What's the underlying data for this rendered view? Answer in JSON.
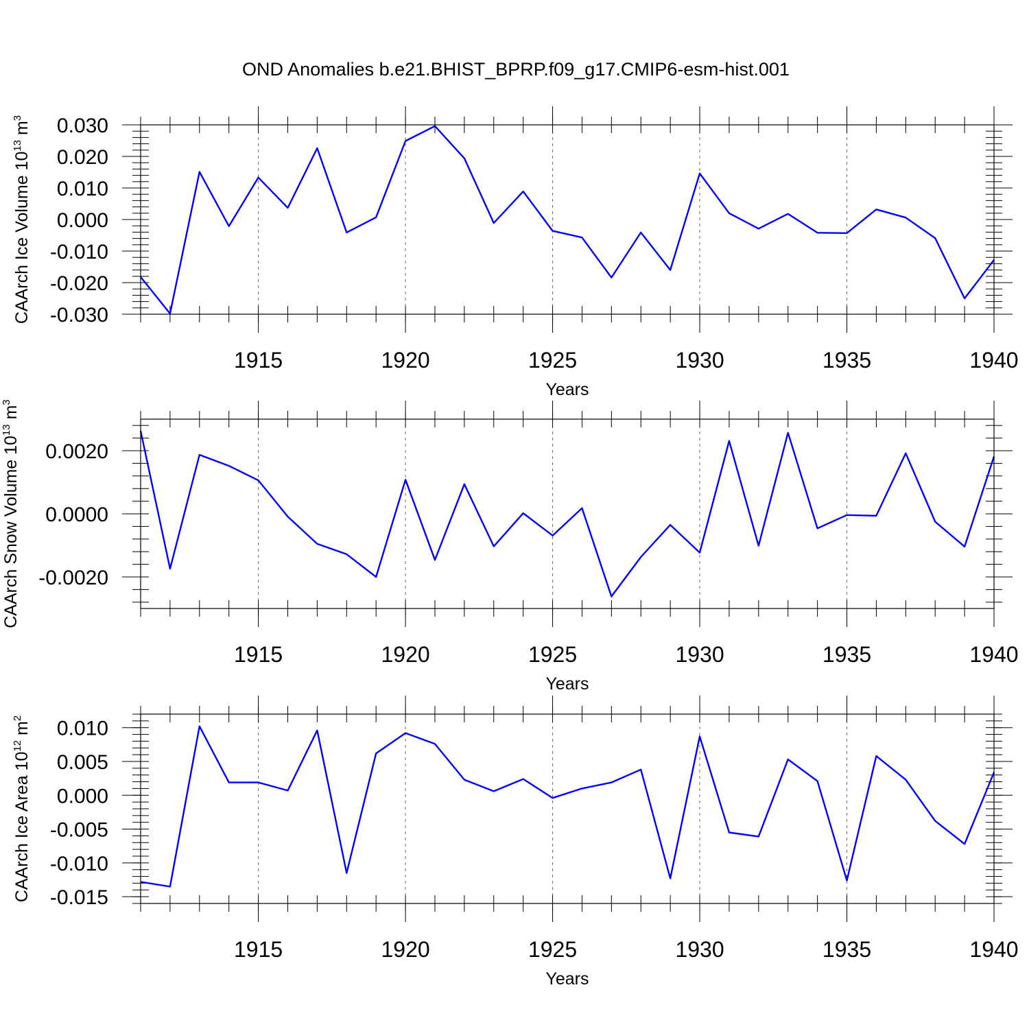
{
  "chart_data": {
    "title": "OND Anomalies b.e21.BHIST_BPRP.f09_g17.CMIP6-esm-hist.001",
    "type": "line",
    "series_color": "#0000ff",
    "x": [
      1911,
      1912,
      1913,
      1914,
      1915,
      1916,
      1917,
      1918,
      1919,
      1920,
      1921,
      1922,
      1923,
      1924,
      1925,
      1926,
      1927,
      1928,
      1929,
      1930,
      1931,
      1932,
      1933,
      1934,
      1935,
      1936,
      1937,
      1938,
      1939,
      1940
    ],
    "xlim": [
      1911,
      1940
    ],
    "xticks": [
      1915,
      1920,
      1925,
      1930,
      1935,
      1940
    ],
    "xtick_labels": [
      "1915",
      "1920",
      "1925",
      "1930",
      "1935",
      "1940"
    ],
    "xlabel": "Years",
    "grid": "dashed vertical lines at major x ticks",
    "panels": [
      {
        "ylabel": "CAArch Ice Volume 10",
        "ylabel_exp": "13",
        "ylabel_unit": " m",
        "ylabel_unit_exp": "3",
        "ylim": [
          -0.03,
          0.03
        ],
        "yticks": [
          -0.03,
          -0.02,
          -0.01,
          0.0,
          0.01,
          0.02,
          0.03
        ],
        "ytick_labels": [
          "-0.030",
          "-0.020",
          "-0.010",
          "0.000",
          "0.010",
          "0.020",
          "0.030"
        ],
        "values": [
          -0.0182,
          -0.0298,
          0.0151,
          -0.0021,
          0.0133,
          0.0037,
          0.0226,
          -0.0041,
          0.0007,
          0.0249,
          0.0296,
          0.0194,
          -0.0011,
          0.0089,
          -0.0036,
          -0.0057,
          -0.0184,
          -0.0041,
          -0.016,
          0.0146,
          0.002,
          -0.0029,
          0.0018,
          -0.0042,
          -0.0043,
          0.0032,
          0.0006,
          -0.0059,
          -0.025,
          -0.0128
        ]
      },
      {
        "ylabel": "CAArch Snow Volume 10",
        "ylabel_exp": "13",
        "ylabel_unit": " m",
        "ylabel_unit_exp": "3",
        "ylim": [
          -0.003,
          0.003
        ],
        "yticks": [
          -0.002,
          0.0,
          0.002
        ],
        "ytick_labels": [
          "-0.0020",
          "0.0000",
          "0.0020"
        ],
        "values": [
          0.00263,
          -0.00174,
          0.00187,
          0.00152,
          0.00106,
          -9e-05,
          -0.00095,
          -0.00128,
          -0.002,
          0.00108,
          -0.00146,
          0.00094,
          -0.00103,
          2e-05,
          -0.00069,
          0.00018,
          -0.00262,
          -0.00137,
          -0.00035,
          -0.00123,
          0.00231,
          -0.00101,
          0.00257,
          -0.00046,
          -4e-05,
          -6e-05,
          0.00192,
          -0.00025,
          -0.00104,
          0.00182
        ]
      },
      {
        "ylabel": "CAArch Ice Area 10",
        "ylabel_exp": "12",
        "ylabel_unit": " m",
        "ylabel_unit_exp": "2",
        "ylim": [
          -0.016,
          0.012
        ],
        "yticks": [
          -0.015,
          -0.01,
          -0.005,
          0.0,
          0.005,
          0.01
        ],
        "ytick_labels": [
          "-0.015",
          "-0.010",
          "-0.005",
          "0.000",
          "0.005",
          "0.010"
        ],
        "values": [
          -0.0128,
          -0.0135,
          0.0102,
          0.0019,
          0.0019,
          0.0007,
          0.0096,
          -0.0115,
          0.0062,
          0.0092,
          0.0076,
          0.0023,
          0.0006,
          0.0024,
          -0.0004,
          0.001,
          0.0019,
          0.0038,
          -0.0123,
          0.0087,
          -0.0055,
          -0.0061,
          0.0053,
          0.0021,
          -0.0126,
          0.0058,
          0.0023,
          -0.0038,
          -0.0072,
          0.0034
        ]
      }
    ]
  }
}
